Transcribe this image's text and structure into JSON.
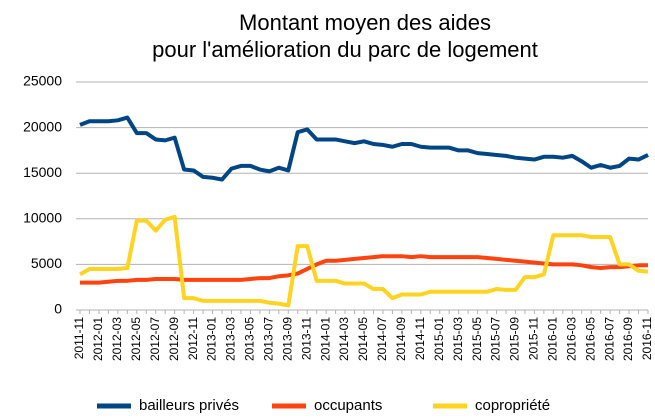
{
  "chart_data": {
    "type": "line",
    "title": [
      "Montant moyen des aides",
      "pour l'amélioration du parc de logement"
    ],
    "categories": [
      "2011-11",
      null,
      "2012-01",
      null,
      "2012-03",
      null,
      "2012-05",
      null,
      "2012-07",
      null,
      "2012-09",
      null,
      "2012-11",
      null,
      "2013-01",
      null,
      "2013-03",
      null,
      "2013-05",
      null,
      "2013-07",
      null,
      "2013-09",
      null,
      "2013-11",
      null,
      "2014-01",
      null,
      "2014-03",
      null,
      "2014-05",
      null,
      "2014-07",
      null,
      "2014-09",
      null,
      "2014-11",
      null,
      "2015-01",
      null,
      "2015-03",
      null,
      "2015-05",
      null,
      "2015-07",
      null,
      "2015-09",
      null,
      "2015-11",
      null,
      "2016-01",
      null,
      "2016-03",
      null,
      "2016-05",
      null,
      "2016-07",
      null,
      "2016-09",
      null,
      "2016-11"
    ],
    "series": [
      {
        "name": "bailleurs privés",
        "color": "#004586",
        "values": [
          20300,
          20700,
          20700,
          20700,
          20800,
          21100,
          19400,
          19400,
          18700,
          18600,
          18900,
          15400,
          15300,
          14600,
          14500,
          14300,
          15500,
          15800,
          15800,
          15400,
          15200,
          15600,
          15300,
          19500,
          19800,
          18700,
          18700,
          18700,
          18500,
          18300,
          18500,
          18200,
          18100,
          17900,
          18200,
          18200,
          17900,
          17800,
          17800,
          17800,
          17500,
          17500,
          17200,
          17100,
          17000,
          16900,
          16700,
          16600,
          16500,
          16800,
          16800,
          16700,
          16900,
          16300,
          15600,
          15900,
          15600,
          15800,
          16600,
          16500,
          17000
        ]
      },
      {
        "name": "occupants",
        "color": "#ff420e",
        "values": [
          3000,
          3000,
          3000,
          3100,
          3200,
          3200,
          3300,
          3300,
          3400,
          3400,
          3400,
          3300,
          3300,
          3300,
          3300,
          3300,
          3300,
          3300,
          3400,
          3500,
          3500,
          3700,
          3800,
          4000,
          4500,
          5000,
          5400,
          5400,
          5500,
          5600,
          5700,
          5800,
          5900,
          5900,
          5900,
          5800,
          5900,
          5800,
          5800,
          5800,
          5800,
          5800,
          5800,
          5700,
          5600,
          5500,
          5400,
          5300,
          5200,
          5100,
          5000,
          5000,
          5000,
          4900,
          4700,
          4600,
          4700,
          4700,
          4800,
          4900,
          4900
        ]
      },
      {
        "name": "copropriété",
        "color": "#ffd320",
        "values": [
          3900,
          4500,
          4500,
          4500,
          4500,
          4600,
          9800,
          9800,
          8700,
          9900,
          10200,
          1300,
          1300,
          1000,
          1000,
          1000,
          1000,
          1000,
          1000,
          1000,
          800,
          700,
          500,
          7000,
          7000,
          3200,
          3200,
          3200,
          2900,
          2900,
          2900,
          2300,
          2300,
          1300,
          1700,
          1700,
          1700,
          2000,
          2000,
          2000,
          2000,
          2000,
          2000,
          2000,
          2300,
          2200,
          2200,
          3600,
          3600,
          3900,
          8200,
          8200,
          8200,
          8200,
          8000,
          8000,
          8000,
          5000,
          5000,
          4300,
          4200
        ]
      }
    ],
    "ylim": [
      0,
      25000
    ],
    "yticks": [
      0,
      5000,
      10000,
      15000,
      20000,
      25000
    ],
    "grid": true,
    "legend": "bottom"
  }
}
